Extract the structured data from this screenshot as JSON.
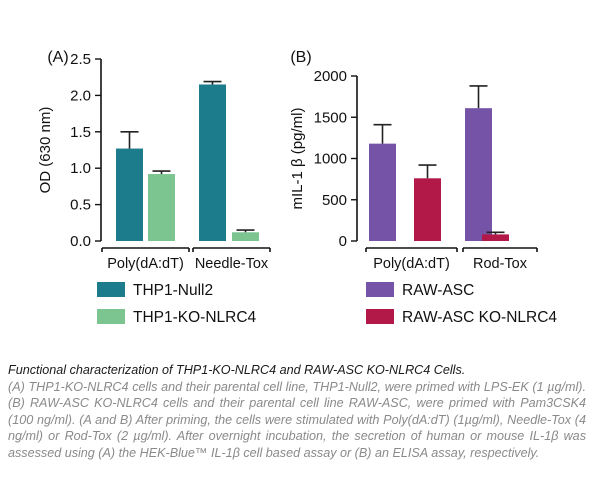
{
  "chart_data": [
    {
      "type": "bar",
      "panel_label": "(A)",
      "ylabel": "OD (630 nm)",
      "ylim": [
        0,
        2.5
      ],
      "yticks": [
        "0.0",
        "0.5",
        "1.0",
        "1.5",
        "2.0",
        "2.5"
      ],
      "ytick_values": [
        0,
        0.5,
        1.0,
        1.5,
        2.0,
        2.5
      ],
      "categories": [
        "Poly(dA:dT)",
        "Needle-Tox"
      ],
      "series": [
        {
          "name": "THP1-Null2",
          "color": "#1d7c8c",
          "values": [
            1.27,
            2.15
          ],
          "errors": [
            0.23,
            0.04
          ]
        },
        {
          "name": "THP1-KO-NLRC4",
          "color": "#7cc591",
          "values": [
            0.92,
            0.12
          ],
          "errors": [
            0.04,
            0.03
          ]
        }
      ]
    },
    {
      "type": "bar",
      "panel_label": "(B)",
      "ylabel": "mIL-1 β (pg/ml)",
      "ylim": [
        0,
        2000
      ],
      "yticks": [
        "0",
        "500",
        "1000",
        "1500",
        "2000"
      ],
      "ytick_values": [
        0,
        500,
        1000,
        1500,
        2000
      ],
      "categories": [
        "Poly(dA:dT)",
        "Rod-Tox"
      ],
      "series": [
        {
          "name": "RAW-ASC",
          "color": "#7553a6",
          "values": [
            1180,
            1610
          ],
          "errors": [
            230,
            270
          ]
        },
        {
          "name": "RAW-ASC KO-NLRC4",
          "color": "#b21848",
          "values": [
            760,
            80
          ],
          "errors": [
            160,
            25
          ]
        }
      ]
    }
  ],
  "caption": {
    "title": "Functional characterization of THP1-KO-NLRC4 and RAW-ASC KO-NLRC4 Cells.",
    "body": "(A) THP1-KO-NLRC4 cells and their parental cell line, THP1-Null2, were primed with LPS-EK (1 µg/ml). (B) RAW-ASC KO-NLRC4 cells and their parental cell line RAW-ASC, were primed with Pam3CSK4 (100 ng/ml). (A and B) After priming, the cells were stimulated with Poly(dA:dT) (1µg/ml), Needle-Tox (4 ng/ml) or Rod-Tox (2 µg/ml). After overnight incubation, the secretion of human or mouse IL-1β was assessed using (A) the HEK-Blue™ IL-1β cell based assay or (B) an ELISA assay, respectively."
  }
}
